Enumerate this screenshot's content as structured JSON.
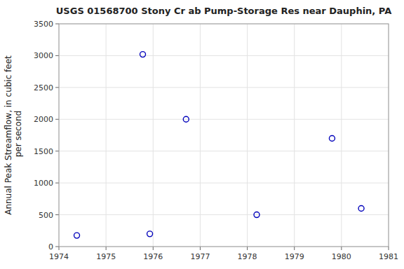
{
  "chart_data": {
    "type": "scatter",
    "title": "USGS 01568700 Stony Cr ab Pump-Storage Res near Dauphin, PA",
    "ylabel": "Annual Peak Streamflow, in cubic feet\n per second",
    "x": [
      1974.38,
      1975.78,
      1975.93,
      1976.7,
      1978.2,
      1979.8,
      1980.42
    ],
    "values": [
      175,
      3020,
      200,
      2000,
      500,
      1700,
      600
    ],
    "xlim": [
      1974,
      1981
    ],
    "ylim": [
      0,
      3500
    ],
    "xticks": [
      1974,
      1975,
      1976,
      1977,
      1978,
      1979,
      1980,
      1981
    ],
    "yticks": [
      0,
      500,
      1000,
      1500,
      2000,
      2500,
      3000,
      3500
    ],
    "color": "#0000bb",
    "marker": "open-circle",
    "grid": true
  }
}
